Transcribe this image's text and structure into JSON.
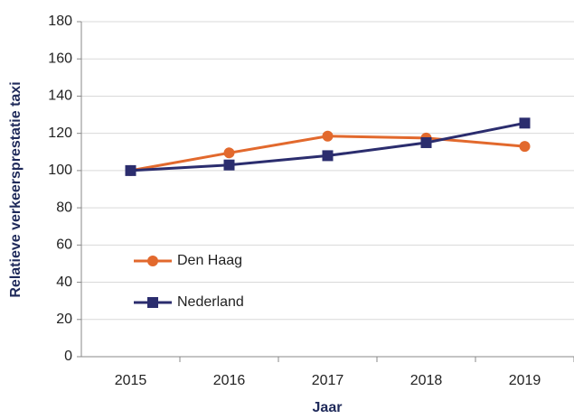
{
  "chart_data": {
    "type": "line",
    "x_label": "Jaar",
    "y_label": "Relatieve verkeersprestatie taxi",
    "categories": [
      "2015",
      "2016",
      "2017",
      "2018",
      "2019"
    ],
    "series": [
      {
        "name": "Den Haag",
        "color": "#e2692d",
        "marker": "circle",
        "values": [
          100,
          109.5,
          118.5,
          117.5,
          113
        ]
      },
      {
        "name": "Nederland",
        "color": "#2b2d6e",
        "marker": "square",
        "values": [
          100,
          103,
          108,
          115,
          125.5
        ]
      }
    ],
    "ylim": [
      0,
      180
    ],
    "yticks": [
      0,
      20,
      40,
      60,
      80,
      100,
      120,
      140,
      160,
      180
    ],
    "grid": true,
    "legend": "left"
  }
}
